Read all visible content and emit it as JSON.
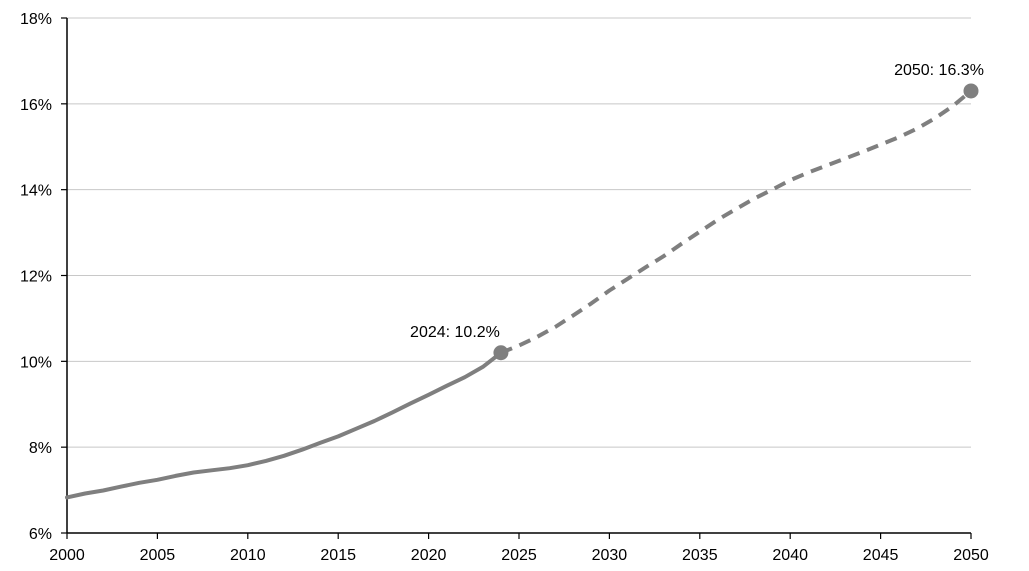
{
  "chart_data": {
    "type": "line",
    "title": "",
    "xlabel": "",
    "ylabel": "",
    "xlim": [
      2000,
      2050
    ],
    "ylim": [
      6,
      18
    ],
    "x_ticks": [
      2000,
      2005,
      2010,
      2015,
      2020,
      2025,
      2030,
      2035,
      2040,
      2045,
      2050
    ],
    "x_tick_labels": [
      "2000",
      "2005",
      "2010",
      "2015",
      "2020",
      "2025",
      "2030",
      "2035",
      "2040",
      "2045",
      "2050"
    ],
    "y_ticks": [
      6,
      8,
      10,
      12,
      14,
      16,
      18
    ],
    "y_tick_labels": [
      "6%",
      "8%",
      "10%",
      "12%",
      "14%",
      "16%",
      "18%"
    ],
    "grid": "horizontal",
    "legend": "none",
    "series": [
      {
        "style": "solid",
        "color": "#7f7f7f",
        "x": [
          2000,
          2001,
          2002,
          2003,
          2004,
          2005,
          2006,
          2007,
          2008,
          2009,
          2010,
          2011,
          2012,
          2013,
          2014,
          2015,
          2016,
          2017,
          2018,
          2019,
          2020,
          2021,
          2022,
          2023,
          2024
        ],
        "values": [
          6.83,
          6.92,
          6.99,
          7.08,
          7.17,
          7.24,
          7.33,
          7.41,
          7.46,
          7.51,
          7.58,
          7.68,
          7.8,
          7.94,
          8.1,
          8.25,
          8.43,
          8.61,
          8.81,
          9.02,
          9.22,
          9.43,
          9.63,
          9.87,
          10.2
        ]
      },
      {
        "style": "dashed",
        "color": "#7f7f7f",
        "x": [
          2024,
          2025,
          2026,
          2027,
          2028,
          2029,
          2030,
          2031,
          2032,
          2033,
          2034,
          2035,
          2036,
          2037,
          2038,
          2039,
          2040,
          2041,
          2042,
          2043,
          2044,
          2045,
          2046,
          2047,
          2048,
          2049,
          2050
        ],
        "values": [
          10.2,
          10.37,
          10.57,
          10.8,
          11.07,
          11.35,
          11.65,
          11.92,
          12.19,
          12.45,
          12.74,
          13.02,
          13.3,
          13.55,
          13.79,
          14.0,
          14.22,
          14.4,
          14.56,
          14.72,
          14.88,
          15.05,
          15.22,
          15.42,
          15.66,
          15.95,
          16.3
        ]
      }
    ],
    "annotations": [
      {
        "x": 2024,
        "y": 10.2,
        "label": "2024: 10.2%"
      },
      {
        "x": 2050,
        "y": 16.3,
        "label": "2050: 16.3%"
      }
    ]
  }
}
